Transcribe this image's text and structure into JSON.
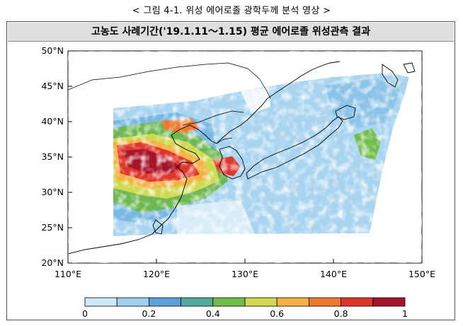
{
  "caption": "< 그림 4-1. 위성 에어로졸 광학두께 분석 영상 >",
  "map_title": "고농도 사례기간('19.1.11～1.15) 평균 에어로졸 위성관측 결과",
  "map_data": {
    "lat_labels": [
      "50°N",
      "45°N",
      "40°N",
      "35°N",
      "30°N",
      "25°N",
      "20°N"
    ],
    "lon_labels": [
      "110°E",
      "120°E",
      "130°E",
      "140°E",
      "150°E"
    ],
    "lat_range": [
      20,
      50
    ],
    "lon_range": [
      110,
      150
    ]
  },
  "colorbar": {
    "colors": [
      "#cde9f7",
      "#9ecfee",
      "#5d9fd6",
      "#53a99a",
      "#72bc4c",
      "#cfd84f",
      "#f5b040",
      "#ef7a2f",
      "#e0352a",
      "#a8142a"
    ],
    "ticks": [
      "0",
      "0.2",
      "0.4",
      "0.6",
      "0.8",
      "1"
    ]
  }
}
